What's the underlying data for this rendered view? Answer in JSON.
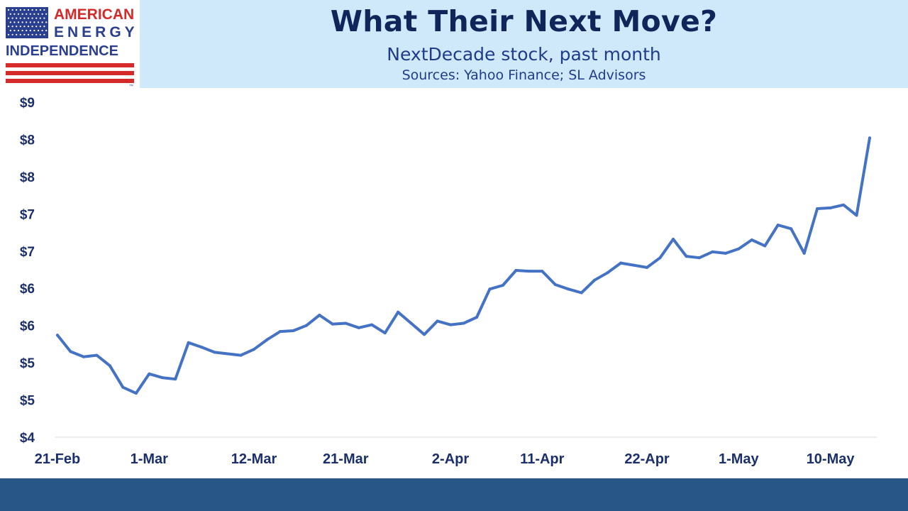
{
  "logo": {
    "line1": "AMERICAN",
    "line2": "ENERGY",
    "line3": "INDEPENDENCE",
    "trademark": "™"
  },
  "header": {
    "title": "What Their Next Move?",
    "subtitle": "NextDecade stock, past month",
    "source": "Sources: Yahoo Finance; SL Advisors"
  },
  "colors": {
    "line": "#4472c4",
    "header_bg": "#cfe9fb",
    "title": "#10255a",
    "footer": "#275687",
    "flag_red": "#d42a2a",
    "flag_blue": "#2a3f8f"
  },
  "chart_data": {
    "type": "line",
    "title": "",
    "xlabel": "",
    "ylabel": "",
    "ylim": [
      4.0,
      8.5
    ],
    "yticks": [
      4.0,
      4.5,
      5.0,
      5.5,
      6.0,
      6.5,
      7.0,
      7.5,
      8.0,
      8.5
    ],
    "ytick_labels": [
      "$4",
      "$5",
      "$5",
      "$6",
      "$6",
      "$7",
      "$7",
      "$8",
      "$8",
      "$9"
    ],
    "xtick_labels": [
      "21-Feb",
      "1-Mar",
      "12-Mar",
      "21-Mar",
      "2-Apr",
      "11-Apr",
      "22-Apr",
      "1-May",
      "10-May"
    ],
    "xtick_index": [
      0,
      7,
      15,
      22,
      30,
      37,
      45,
      52,
      59
    ],
    "grid": false,
    "legend": "none",
    "series": [
      {
        "values": [
          5.37,
          5.15,
          5.08,
          5.1,
          4.96,
          4.67,
          4.59,
          4.85,
          4.8,
          4.78,
          5.27,
          5.21,
          5.14,
          5.12,
          5.1,
          5.18,
          5.31,
          5.42,
          5.43,
          5.5,
          5.64,
          5.52,
          5.53,
          5.47,
          5.51,
          5.4,
          5.68,
          5.53,
          5.38,
          5.56,
          5.51,
          5.53,
          5.61,
          5.99,
          6.04,
          6.24,
          6.23,
          6.23,
          6.05,
          5.99,
          5.94,
          6.11,
          6.21,
          6.34,
          6.31,
          6.28,
          6.41,
          6.66,
          6.43,
          6.41,
          6.49,
          6.47,
          6.53,
          6.65,
          6.57,
          6.85,
          6.8,
          6.47,
          7.07,
          7.08,
          7.12,
          6.98,
          8.02
        ]
      }
    ]
  }
}
